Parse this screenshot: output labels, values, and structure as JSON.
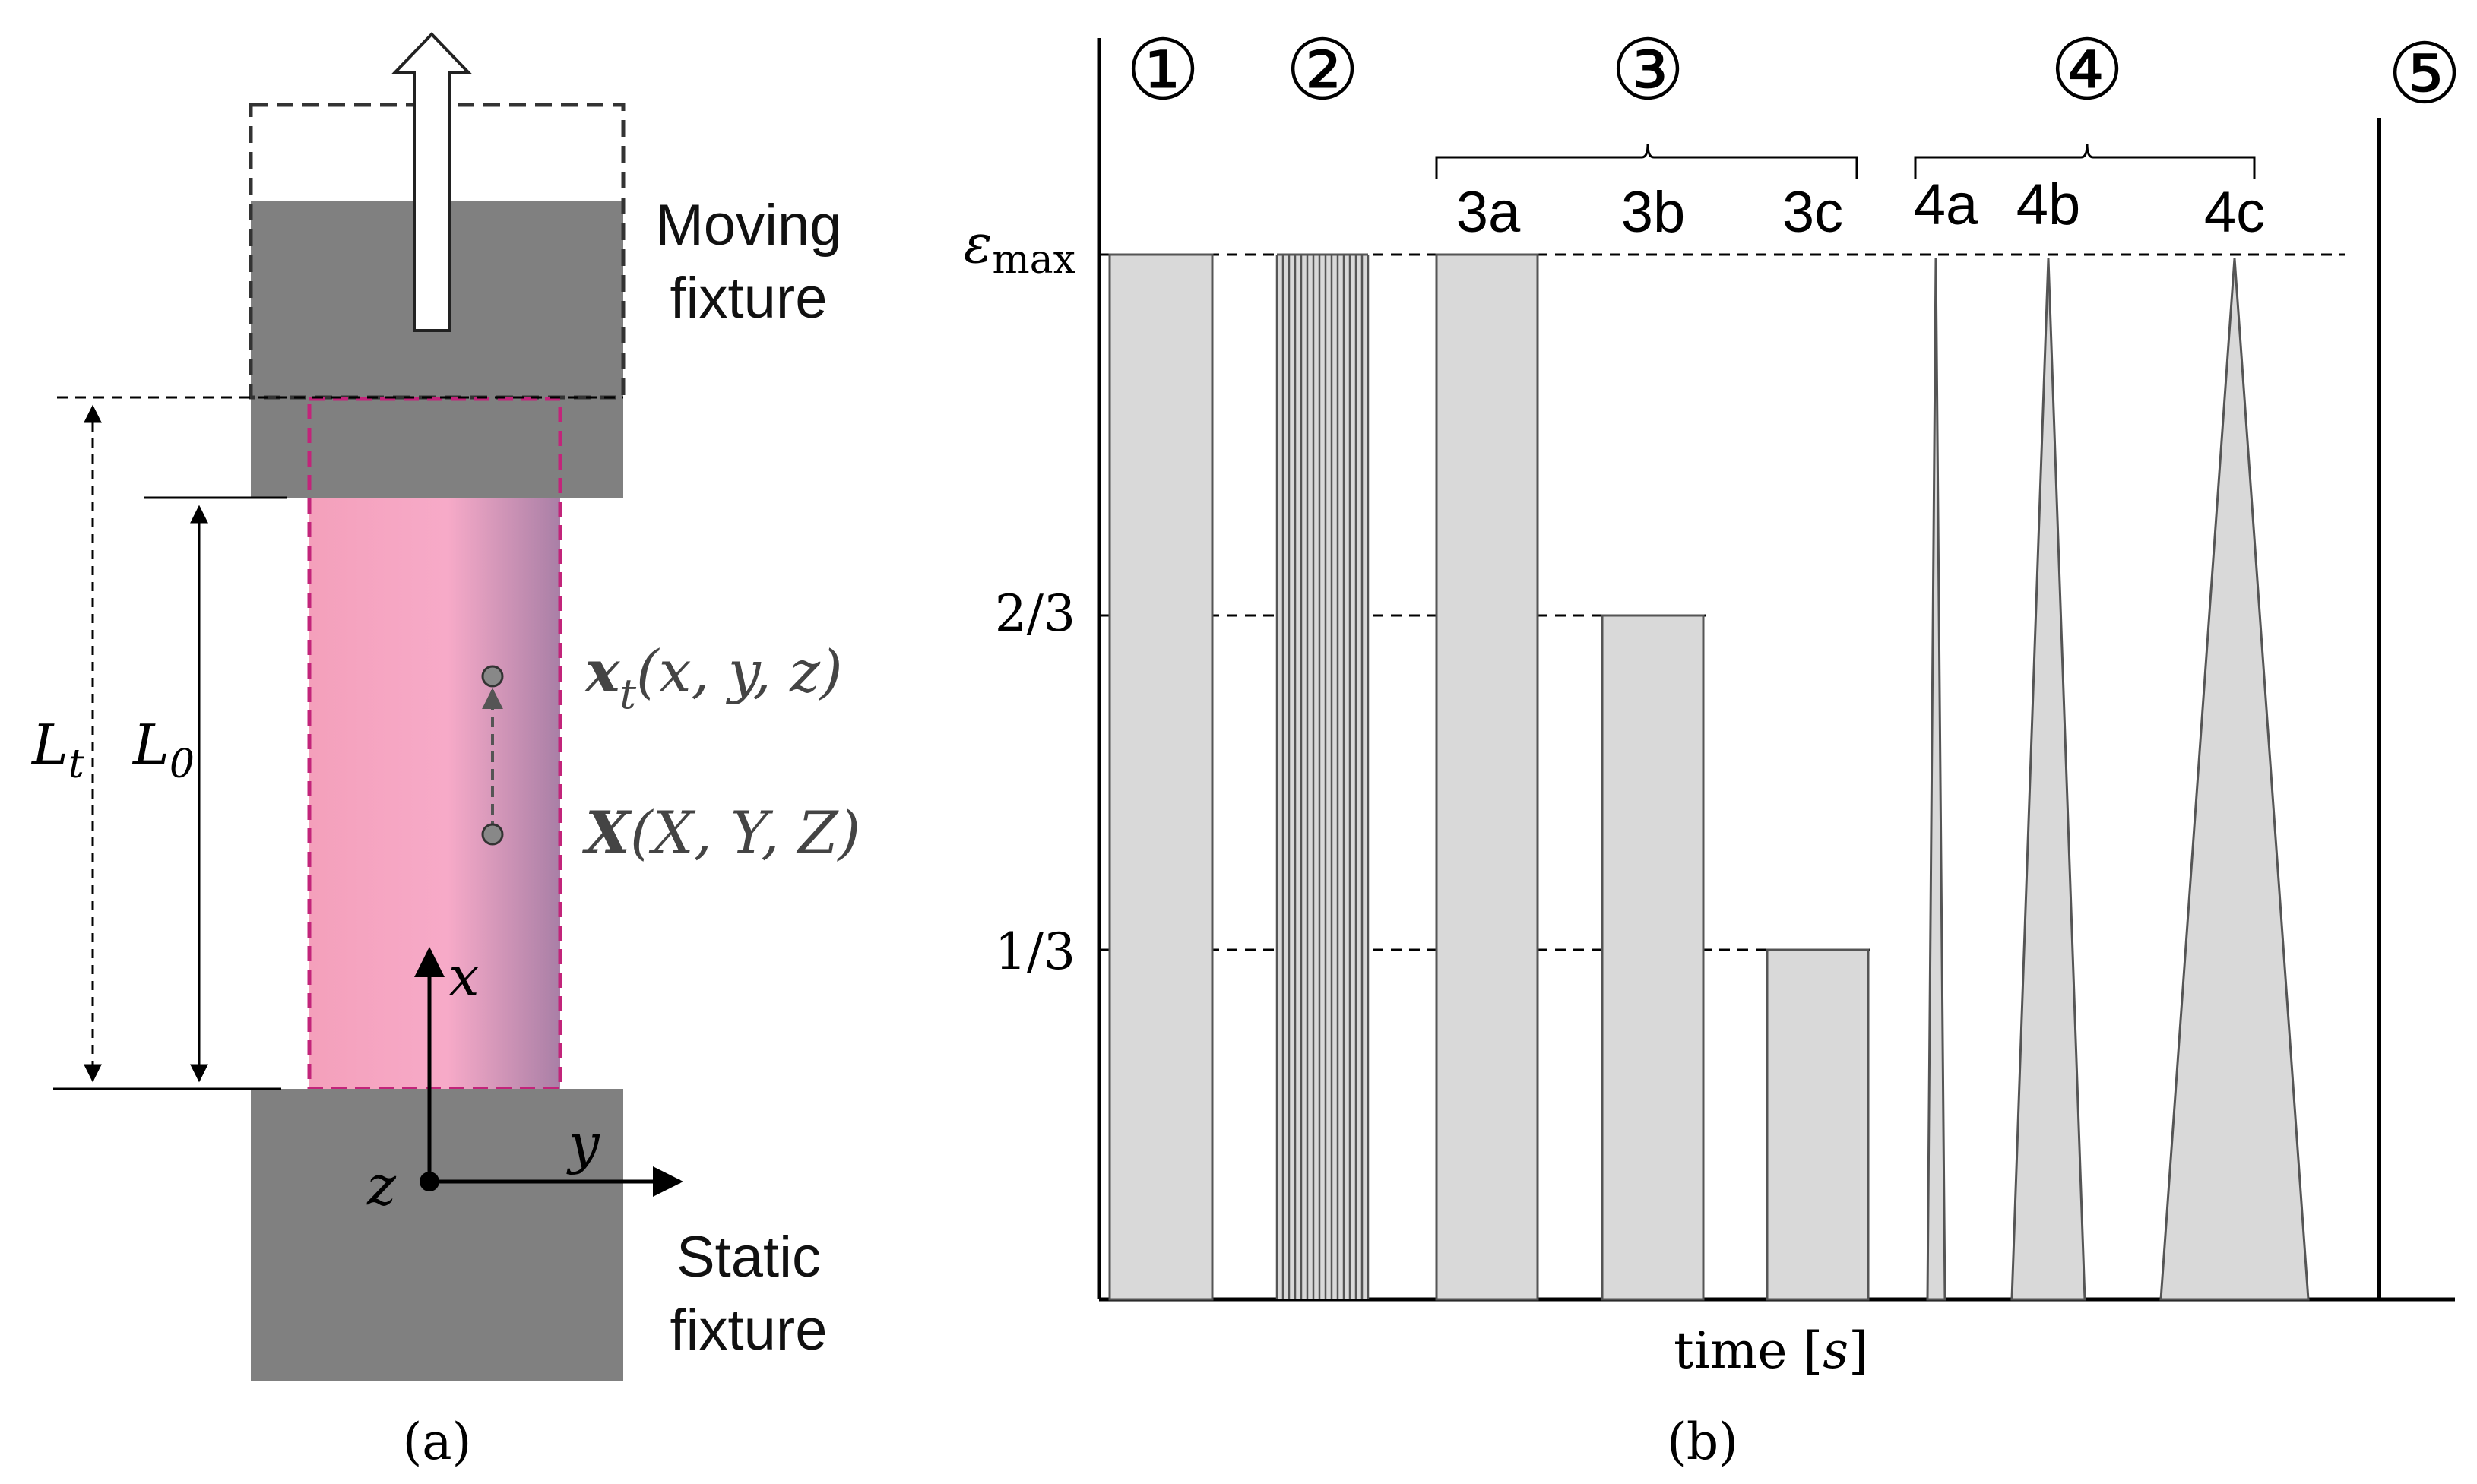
{
  "panel_a": {
    "caption": "(a)",
    "moving_fixture": "Moving\nfixture",
    "static_fixture": "Static\nfixture",
    "label_Lt": "L",
    "label_Lt_sub": "t",
    "label_L0": "L",
    "label_L0_sub": "0",
    "point_current": "x",
    "point_current_sub": "t",
    "point_current_args": "(x, y, z)",
    "point_reference": "X",
    "point_reference_args": "(X, Y, Z)",
    "axis_x": "x",
    "axis_y": "y",
    "axis_z": "z",
    "colors": {
      "fixture": "#808080",
      "specimen": "#f5a6c4",
      "specimen_outline": "#c2247a"
    }
  },
  "panel_b": {
    "caption": "(b)",
    "x_label": "time [s]",
    "y_top_label": "εmax",
    "y_ticks": [
      "2/3",
      "1/3"
    ],
    "phases": [
      "①",
      "②",
      "③",
      "④",
      "⑤"
    ],
    "sub_labels": [
      "3a",
      "3b",
      "3c",
      "4a",
      "4b",
      "4c"
    ],
    "colors": {
      "fill": "#d9d9d9",
      "stroke": "#555555"
    }
  },
  "chart_data": {
    "type": "area",
    "xlabel": "time [s]",
    "ylabel": "",
    "y_tick_labels": [
      "εmax",
      "2/3",
      "1/3"
    ],
    "series": [
      {
        "name": "①",
        "shape": "hold",
        "strain_level": 1.0
      },
      {
        "name": "②",
        "shape": "cyclic",
        "strain_level": 1.0
      },
      {
        "name": "3a",
        "shape": "hold",
        "strain_level": 1.0
      },
      {
        "name": "3b",
        "shape": "hold",
        "strain_level": 0.667
      },
      {
        "name": "3c",
        "shape": "hold",
        "strain_level": 0.333
      },
      {
        "name": "4a",
        "shape": "ramp",
        "strain_level": 1.0
      },
      {
        "name": "4b",
        "shape": "ramp",
        "strain_level": 1.0
      },
      {
        "name": "4c",
        "shape": "ramp",
        "strain_level": 1.0
      }
    ]
  }
}
